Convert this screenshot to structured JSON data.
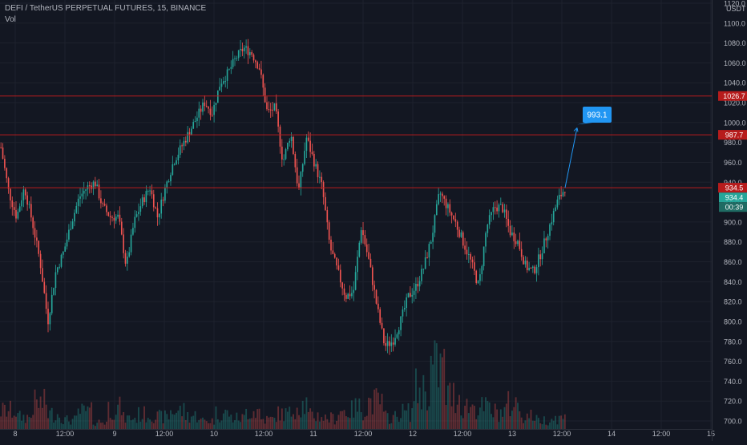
{
  "legend": {
    "title": "DEFI / TetherUS PERPETUAL FUTURES, 15, BINANCE",
    "indicator": "Vol"
  },
  "colors": {
    "background": "#131722",
    "grid": "#1e222d",
    "text": "#b2b5be",
    "up": "#26a69a",
    "down": "#ef5350",
    "line_red": "#b71c1c",
    "callout": "#2196f3",
    "price_tag": "#26a69a"
  },
  "chart_data": {
    "type": "candlestick",
    "symbol": "DEFI / TetherUS PERPETUAL FUTURES, 15, BINANCE",
    "currency": "USDT",
    "y_ticks": [
      "700.0",
      "720.0",
      "740.0",
      "760.0",
      "780.0",
      "800.0",
      "820.0",
      "840.0",
      "860.0",
      "880.0",
      "900.0",
      "920.0",
      "940.0",
      "960.0",
      "980.0",
      "1000.0",
      "1020.0",
      "1040.0",
      "1060.0",
      "1080.0",
      "1100.0",
      "1120.0"
    ],
    "x_ticks": [
      "8",
      "12:00",
      "9",
      "12:00",
      "10",
      "12:00",
      "11",
      "12:00",
      "12",
      "12:00",
      "13",
      "12:00",
      "14",
      "12:00",
      "15"
    ],
    "ylim": [
      700,
      1120
    ],
    "horizontal_levels": [
      {
        "label": "1026.7",
        "value": 1026.7
      },
      {
        "label": "987.7",
        "value": 987.7
      },
      {
        "label": "934.5",
        "value": 934.5
      }
    ],
    "last_price": {
      "label": "934.4",
      "value": 934.4
    },
    "countdown": "00:39",
    "projection": {
      "label": "993.1",
      "from": 934.5,
      "to": 993.1
    },
    "price_path": [
      {
        "t": 0,
        "v": 975
      },
      {
        "t": 0.5,
        "v": 930
      },
      {
        "t": 1,
        "v": 905
      },
      {
        "t": 1.5,
        "v": 935
      },
      {
        "t": 2,
        "v": 900
      },
      {
        "t": 2.5,
        "v": 860
      },
      {
        "t": 3,
        "v": 800
      },
      {
        "t": 3.5,
        "v": 850
      },
      {
        "t": 4,
        "v": 870
      },
      {
        "t": 4.5,
        "v": 900
      },
      {
        "t": 5,
        "v": 925
      },
      {
        "t": 5.5,
        "v": 935
      },
      {
        "t": 6,
        "v": 940
      },
      {
        "t": 6.5,
        "v": 915
      },
      {
        "t": 7,
        "v": 905
      },
      {
        "t": 7.5,
        "v": 905
      },
      {
        "t": 8,
        "v": 855
      },
      {
        "t": 8.5,
        "v": 900
      },
      {
        "t": 9,
        "v": 920
      },
      {
        "t": 9.5,
        "v": 935
      },
      {
        "t": 10,
        "v": 905
      },
      {
        "t": 10.5,
        "v": 935
      },
      {
        "t": 11,
        "v": 960
      },
      {
        "t": 11.5,
        "v": 975
      },
      {
        "t": 12,
        "v": 990
      },
      {
        "t": 12.5,
        "v": 1005
      },
      {
        "t": 13,
        "v": 1020
      },
      {
        "t": 13.5,
        "v": 1010
      },
      {
        "t": 14,
        "v": 1040
      },
      {
        "t": 14.5,
        "v": 1050
      },
      {
        "t": 15,
        "v": 1065
      },
      {
        "t": 15.5,
        "v": 1075
      },
      {
        "t": 16,
        "v": 1070
      },
      {
        "t": 16.5,
        "v": 1055
      },
      {
        "t": 17,
        "v": 1010
      },
      {
        "t": 17.5,
        "v": 1015
      },
      {
        "t": 18,
        "v": 960
      },
      {
        "t": 18.5,
        "v": 990
      },
      {
        "t": 19,
        "v": 930
      },
      {
        "t": 19.5,
        "v": 985
      },
      {
        "t": 20,
        "v": 960
      },
      {
        "t": 20.5,
        "v": 935
      },
      {
        "t": 21,
        "v": 875
      },
      {
        "t": 21.5,
        "v": 850
      },
      {
        "t": 22,
        "v": 825
      },
      {
        "t": 22.5,
        "v": 830
      },
      {
        "t": 23,
        "v": 895
      },
      {
        "t": 23.5,
        "v": 860
      },
      {
        "t": 24,
        "v": 815
      },
      {
        "t": 24.5,
        "v": 775
      },
      {
        "t": 25,
        "v": 780
      },
      {
        "t": 25.5,
        "v": 800
      },
      {
        "t": 26,
        "v": 825
      },
      {
        "t": 26.5,
        "v": 835
      },
      {
        "t": 27,
        "v": 855
      },
      {
        "t": 27.5,
        "v": 885
      },
      {
        "t": 28,
        "v": 930
      },
      {
        "t": 28.5,
        "v": 915
      },
      {
        "t": 29,
        "v": 900
      },
      {
        "t": 29.5,
        "v": 880
      },
      {
        "t": 30,
        "v": 860
      },
      {
        "t": 30.5,
        "v": 835
      },
      {
        "t": 31,
        "v": 895
      },
      {
        "t": 31.5,
        "v": 915
      },
      {
        "t": 32,
        "v": 915
      },
      {
        "t": 32.5,
        "v": 890
      },
      {
        "t": 33,
        "v": 880
      },
      {
        "t": 33.5,
        "v": 855
      },
      {
        "t": 34,
        "v": 850
      },
      {
        "t": 34.5,
        "v": 870
      },
      {
        "t": 35,
        "v": 895
      },
      {
        "t": 35.5,
        "v": 920
      },
      {
        "t": 36,
        "v": 934.4
      }
    ],
    "volume_profile": [
      30,
      20,
      42,
      25,
      15,
      28,
      12,
      35,
      18,
      24,
      20,
      30,
      22,
      14,
      26,
      18,
      30,
      16,
      25,
      40,
      22,
      18,
      30,
      35,
      45,
      20,
      28,
      65,
      100,
      55,
      38,
      35,
      28,
      40,
      22,
      15,
      18
    ]
  }
}
